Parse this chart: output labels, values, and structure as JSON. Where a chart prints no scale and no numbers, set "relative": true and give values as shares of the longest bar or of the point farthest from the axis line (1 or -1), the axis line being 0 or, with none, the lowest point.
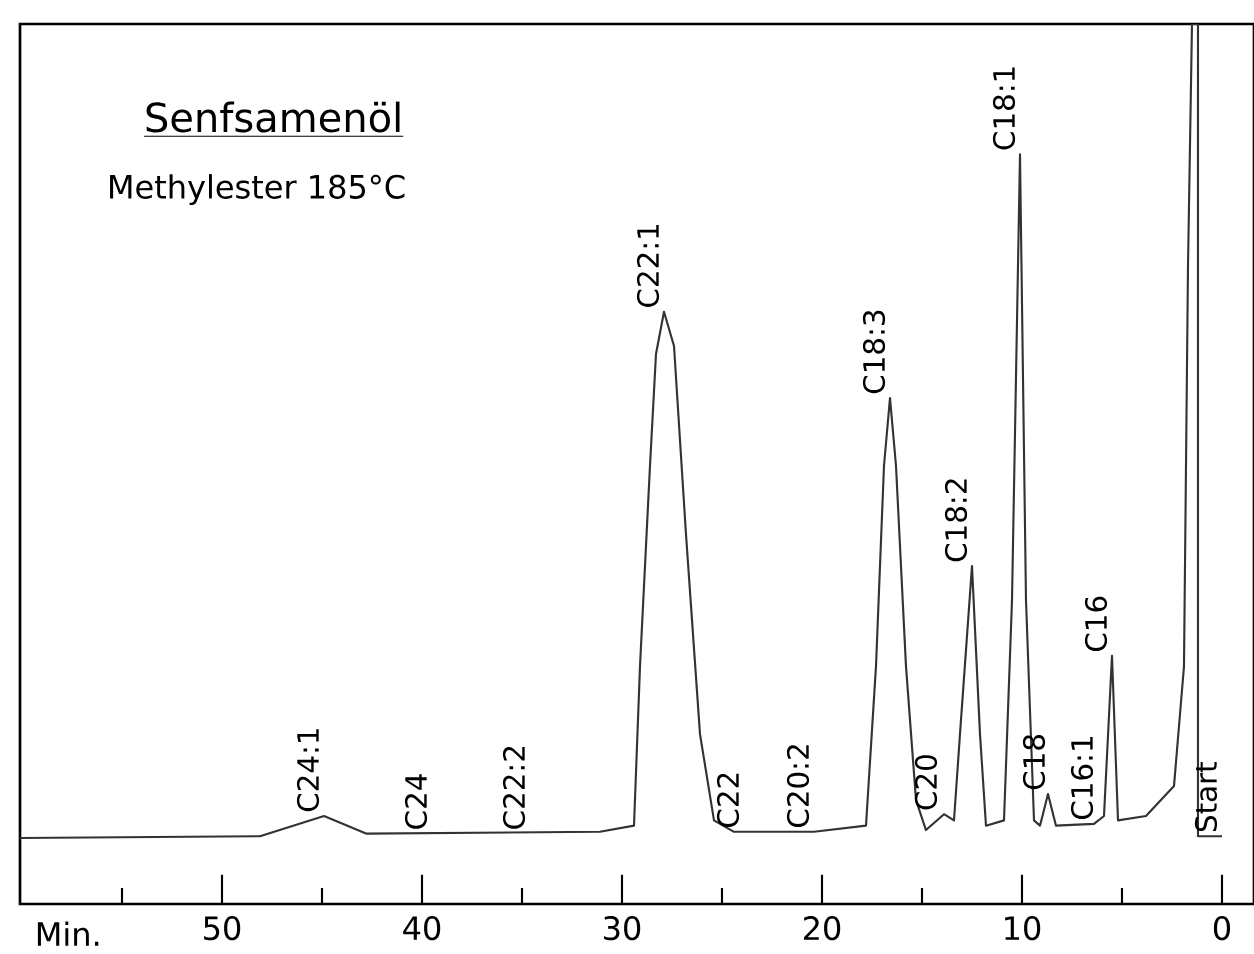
{
  "chart_data": {
    "type": "line",
    "title": "Senfsamenöl",
    "subtitle": "Methylester 185°C",
    "xlabel": "Min.",
    "relative": true,
    "color": "#333333",
    "x": [
      60.1,
      48.1,
      44.9,
      42.8,
      31.1,
      29.4,
      29.1,
      28.6,
      28.3,
      27.9,
      27.4,
      26.8,
      26.1,
      25.4,
      24.4,
      20.4,
      17.8,
      17.3,
      16.9,
      16.6,
      16.3,
      15.8,
      15.3,
      14.8,
      13.9,
      13.4,
      13.1,
      12.5,
      12.1,
      11.8,
      10.9,
      10.5,
      10.1,
      9.8,
      9.4,
      9.1,
      8.7,
      8.3,
      6.4,
      5.9,
      5.5,
      5.2,
      3.8,
      2.4,
      1.9,
      1.7,
      1.5,
      1.2,
      1.2,
      0
    ],
    "values": [
      0.075,
      0.077,
      0.1,
      0.08,
      0.082,
      0.089,
      0.27,
      0.498,
      0.625,
      0.673,
      0.634,
      0.42,
      0.193,
      0.095,
      0.082,
      0.082,
      0.089,
      0.27,
      0.498,
      0.575,
      0.498,
      0.27,
      0.118,
      0.084,
      0.102,
      0.095,
      0.193,
      0.384,
      0.193,
      0.089,
      0.095,
      0.345,
      0.852,
      0.345,
      0.095,
      0.089,
      0.125,
      0.089,
      0.091,
      0.1,
      0.282,
      0.095,
      0.1,
      0.134,
      0.27,
      0.725,
      1.0,
      1.0,
      0.077,
      0.077
    ],
    "xlim": [
      60.1,
      -1.6
    ],
    "xticks": [
      {
        "value": 55,
        "label": null
      },
      50,
      {
        "value": 45,
        "label": null
      },
      40,
      {
        "value": 35,
        "label": null
      },
      30,
      {
        "value": 25,
        "label": null
      },
      20,
      {
        "value": 15,
        "label": null
      },
      10,
      {
        "value": 5,
        "label": null
      },
      0
    ],
    "annotations": [
      {
        "text": "C24:1",
        "x": 44.9,
        "y": 0.1
      },
      {
        "text": "C24",
        "x": 39.5,
        "y": 0.08
      },
      {
        "text": "C22:2",
        "x": 34.6,
        "y": 0.08
      },
      {
        "text": "C22:1",
        "x": 27.9,
        "y": 0.673
      },
      {
        "text": "C22",
        "x": 23.9,
        "y": 0.082
      },
      {
        "text": "C20:2",
        "x": 20.4,
        "y": 0.082
      },
      {
        "text": "C18:3",
        "x": 16.6,
        "y": 0.575
      },
      {
        "text": "C20",
        "x": 14.0,
        "y": 0.102
      },
      {
        "text": "C18:2",
        "x": 12.5,
        "y": 0.384
      },
      {
        "text": "C18:1",
        "x": 10.1,
        "y": 0.852
      },
      {
        "text": "C18",
        "x": 8.6,
        "y": 0.125
      },
      {
        "text": "C16:1",
        "x": 6.2,
        "y": 0.091
      },
      {
        "text": "C16",
        "x": 5.5,
        "y": 0.282
      },
      {
        "text": "Start",
        "x": 0,
        "y": 0.077
      }
    ]
  }
}
